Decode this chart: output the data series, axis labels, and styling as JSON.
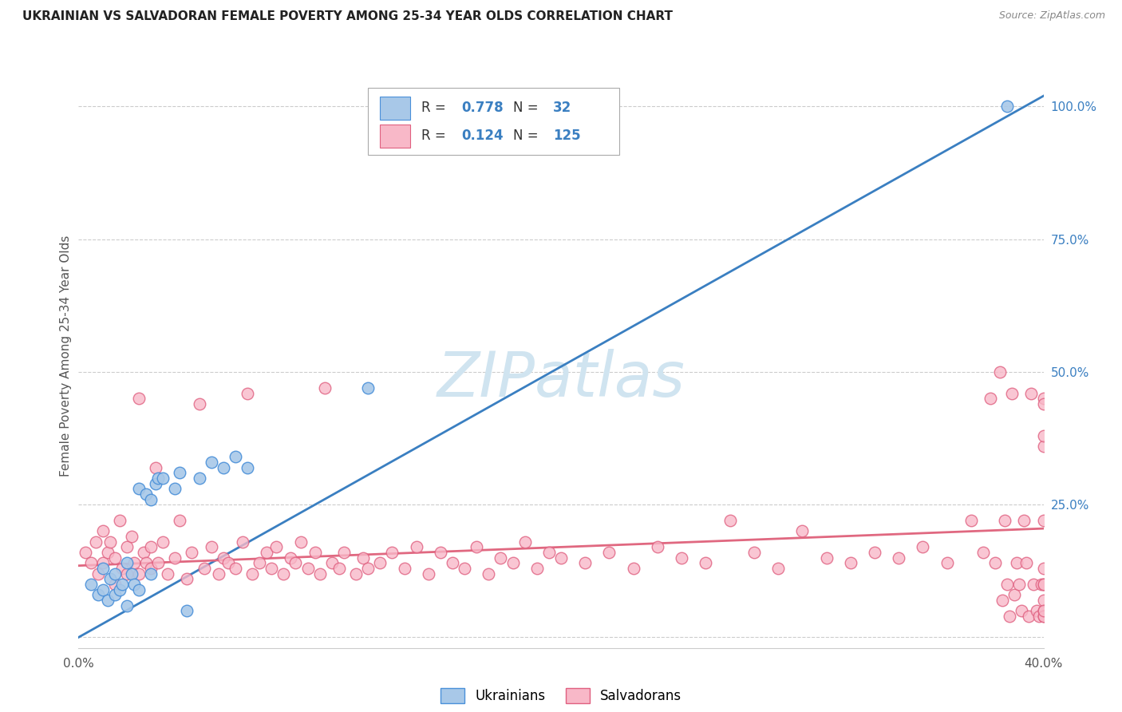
{
  "title": "UKRAINIAN VS SALVADORAN FEMALE POVERTY AMONG 25-34 YEAR OLDS CORRELATION CHART",
  "source": "Source: ZipAtlas.com",
  "ylabel": "Female Poverty Among 25-34 Year Olds",
  "xmin": 0.0,
  "xmax": 0.4,
  "ymin": -0.02,
  "ymax": 1.08,
  "xticks": [
    0.0,
    0.1,
    0.2,
    0.3,
    0.4
  ],
  "xticklabels": [
    "0.0%",
    "",
    "",
    "",
    "40.0%"
  ],
  "yticks_right": [
    0.0,
    0.25,
    0.5,
    0.75,
    1.0
  ],
  "yticklabels_right": [
    "",
    "25.0%",
    "50.0%",
    "75.0%",
    "100.0%"
  ],
  "ukrainian_fill": "#a8c8e8",
  "ukrainian_edge": "#4a90d9",
  "salvadoran_fill": "#f8b8c8",
  "salvadoran_edge": "#e06080",
  "ukr_line_color": "#3a7fc1",
  "sal_line_color": "#e06880",
  "watermark_color": "#d0e4f0",
  "legend_R_ukr": "0.778",
  "legend_N_ukr": "32",
  "legend_R_sal": "0.124",
  "legend_N_sal": "125",
  "ukr_line_x0": 0.0,
  "ukr_line_y0": 0.0,
  "ukr_line_x1": 0.4,
  "ukr_line_y1": 1.02,
  "sal_line_x0": 0.0,
  "sal_line_y0": 0.135,
  "sal_line_x1": 0.4,
  "sal_line_y1": 0.205,
  "ukr_scatter_x": [
    0.005,
    0.008,
    0.01,
    0.01,
    0.012,
    0.013,
    0.015,
    0.015,
    0.017,
    0.018,
    0.02,
    0.02,
    0.022,
    0.023,
    0.025,
    0.025,
    0.028,
    0.03,
    0.03,
    0.032,
    0.033,
    0.035,
    0.04,
    0.042,
    0.045,
    0.05,
    0.055,
    0.06,
    0.065,
    0.07,
    0.12,
    0.385
  ],
  "ukr_scatter_y": [
    0.1,
    0.08,
    0.09,
    0.13,
    0.07,
    0.11,
    0.08,
    0.12,
    0.09,
    0.1,
    0.06,
    0.14,
    0.12,
    0.1,
    0.09,
    0.28,
    0.27,
    0.26,
    0.12,
    0.29,
    0.3,
    0.3,
    0.28,
    0.31,
    0.05,
    0.3,
    0.33,
    0.32,
    0.34,
    0.32,
    0.47,
    1.0
  ],
  "sal_scatter_x": [
    0.003,
    0.005,
    0.007,
    0.008,
    0.01,
    0.01,
    0.012,
    0.013,
    0.015,
    0.015,
    0.017,
    0.018,
    0.02,
    0.02,
    0.022,
    0.023,
    0.025,
    0.025,
    0.027,
    0.028,
    0.03,
    0.03,
    0.032,
    0.033,
    0.035,
    0.037,
    0.04,
    0.042,
    0.045,
    0.047,
    0.05,
    0.052,
    0.055,
    0.058,
    0.06,
    0.062,
    0.065,
    0.068,
    0.07,
    0.072,
    0.075,
    0.078,
    0.08,
    0.082,
    0.085,
    0.088,
    0.09,
    0.092,
    0.095,
    0.098,
    0.1,
    0.102,
    0.105,
    0.108,
    0.11,
    0.115,
    0.118,
    0.12,
    0.125,
    0.13,
    0.135,
    0.14,
    0.145,
    0.15,
    0.155,
    0.16,
    0.165,
    0.17,
    0.175,
    0.18,
    0.185,
    0.19,
    0.195,
    0.2,
    0.21,
    0.22,
    0.23,
    0.24,
    0.25,
    0.26,
    0.27,
    0.28,
    0.29,
    0.3,
    0.31,
    0.32,
    0.33,
    0.34,
    0.35,
    0.36,
    0.37,
    0.375,
    0.378,
    0.38,
    0.382,
    0.383,
    0.384,
    0.385,
    0.386,
    0.387,
    0.388,
    0.389,
    0.39,
    0.391,
    0.392,
    0.393,
    0.394,
    0.395,
    0.396,
    0.397,
    0.398,
    0.399,
    0.4,
    0.4,
    0.4,
    0.4,
    0.4,
    0.4,
    0.4,
    0.4,
    0.4,
    0.4,
    0.4,
    0.4,
    0.4
  ],
  "sal_scatter_y": [
    0.16,
    0.14,
    0.18,
    0.12,
    0.2,
    0.14,
    0.16,
    0.18,
    0.1,
    0.15,
    0.22,
    0.13,
    0.12,
    0.17,
    0.19,
    0.14,
    0.45,
    0.12,
    0.16,
    0.14,
    0.13,
    0.17,
    0.32,
    0.14,
    0.18,
    0.12,
    0.15,
    0.22,
    0.11,
    0.16,
    0.44,
    0.13,
    0.17,
    0.12,
    0.15,
    0.14,
    0.13,
    0.18,
    0.46,
    0.12,
    0.14,
    0.16,
    0.13,
    0.17,
    0.12,
    0.15,
    0.14,
    0.18,
    0.13,
    0.16,
    0.12,
    0.47,
    0.14,
    0.13,
    0.16,
    0.12,
    0.15,
    0.13,
    0.14,
    0.16,
    0.13,
    0.17,
    0.12,
    0.16,
    0.14,
    0.13,
    0.17,
    0.12,
    0.15,
    0.14,
    0.18,
    0.13,
    0.16,
    0.15,
    0.14,
    0.16,
    0.13,
    0.17,
    0.15,
    0.14,
    0.22,
    0.16,
    0.13,
    0.2,
    0.15,
    0.14,
    0.16,
    0.15,
    0.17,
    0.14,
    0.22,
    0.16,
    0.45,
    0.14,
    0.5,
    0.07,
    0.22,
    0.1,
    0.04,
    0.46,
    0.08,
    0.14,
    0.1,
    0.05,
    0.22,
    0.14,
    0.04,
    0.46,
    0.1,
    0.05,
    0.04,
    0.1,
    0.45,
    0.36,
    0.44,
    0.05,
    0.22,
    0.1,
    0.04,
    0.38,
    0.07,
    0.13,
    0.04,
    0.1,
    0.05
  ]
}
